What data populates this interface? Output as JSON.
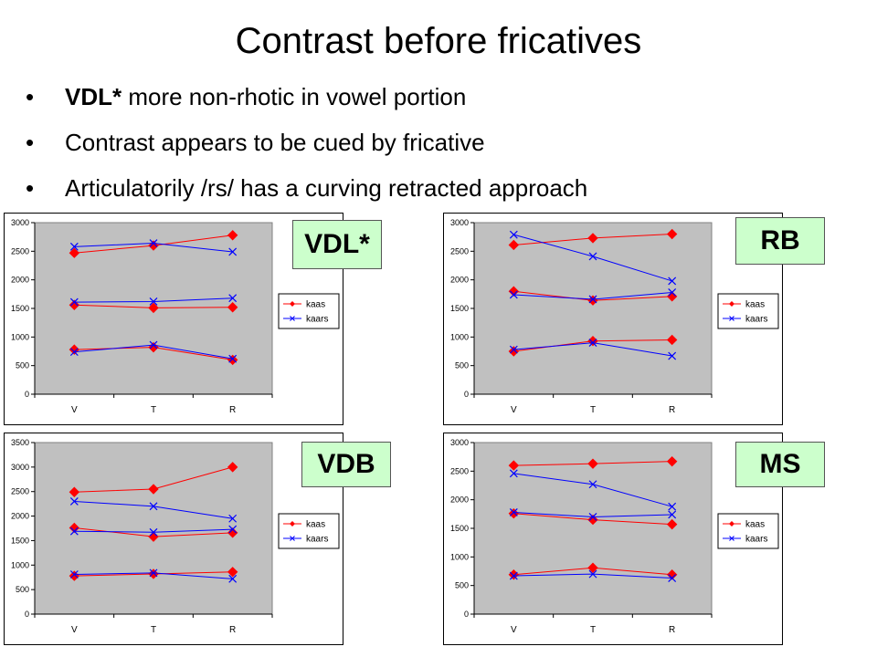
{
  "slide": {
    "title": "Contrast before fricatives",
    "bullet_symbol": "•",
    "bullets": [
      {
        "bold": "VDL*",
        "text": " more non-rhotic in vowel portion"
      },
      {
        "bold": "",
        "text": "Contrast appears to be cued by fricative"
      },
      {
        "bold": "",
        "text": "Articulatorily /rs/ has a curving retracted approach"
      }
    ]
  },
  "colors": {
    "kaas": "#ff0000",
    "kaars": "#0000ff",
    "plot_bg": "#c0c0c0",
    "label_bg": "#ccffcc"
  },
  "chart_data": [
    {
      "type": "line",
      "speaker": "VDL*",
      "categories": [
        "V",
        "T",
        "R"
      ],
      "ylim": [
        0,
        3000
      ],
      "yticks": [
        0,
        500,
        1000,
        1500,
        2000,
        2500,
        3000
      ],
      "series": [
        {
          "name": "kaas",
          "formants": [
            [
              780,
              820,
              600
            ],
            [
              1560,
              1510,
              1520
            ],
            [
              2470,
              2600,
              2780
            ]
          ]
        },
        {
          "name": "kaars",
          "formants": [
            [
              740,
              860,
              620
            ],
            [
              1610,
              1620,
              1680
            ],
            [
              2580,
              2640,
              2490
            ]
          ]
        }
      ]
    },
    {
      "type": "line",
      "speaker": "RB",
      "categories": [
        "V",
        "T",
        "R"
      ],
      "ylim": [
        0,
        3000
      ],
      "yticks": [
        0,
        500,
        1000,
        1500,
        2000,
        2500,
        3000
      ],
      "series": [
        {
          "name": "kaas",
          "formants": [
            [
              750,
              930,
              950
            ],
            [
              1800,
              1640,
              1710
            ],
            [
              2610,
              2730,
              2800
            ]
          ]
        },
        {
          "name": "kaars",
          "formants": [
            [
              780,
              900,
              670
            ],
            [
              1740,
              1660,
              1780
            ],
            [
              2790,
              2410,
              1980
            ]
          ]
        }
      ]
    },
    {
      "type": "line",
      "speaker": "VDB",
      "categories": [
        "V",
        "T",
        "R"
      ],
      "ylim": [
        0,
        3500
      ],
      "yticks": [
        0,
        500,
        1000,
        1500,
        2000,
        2500,
        3000,
        3500
      ],
      "series": [
        {
          "name": "kaas",
          "formants": [
            [
              780,
              820,
              860
            ],
            [
              1760,
              1580,
              1660
            ],
            [
              2490,
              2550,
              3000
            ]
          ]
        },
        {
          "name": "kaars",
          "formants": [
            [
              810,
              840,
              720
            ],
            [
              1690,
              1670,
              1730
            ],
            [
              2300,
              2200,
              1950
            ]
          ]
        }
      ]
    },
    {
      "type": "line",
      "speaker": "MS",
      "categories": [
        "V",
        "T",
        "R"
      ],
      "ylim": [
        0,
        3000
      ],
      "yticks": [
        0,
        500,
        1000,
        1500,
        2000,
        2500,
        3000
      ],
      "series": [
        {
          "name": "kaas",
          "formants": [
            [
              690,
              810,
              690
            ],
            [
              1760,
              1650,
              1570
            ],
            [
              2600,
              2630,
              2670
            ]
          ]
        },
        {
          "name": "kaars",
          "formants": [
            [
              670,
              700,
              630
            ],
            [
              1780,
              1700,
              1740
            ],
            [
              2460,
              2270,
              1880
            ]
          ]
        }
      ]
    }
  ]
}
